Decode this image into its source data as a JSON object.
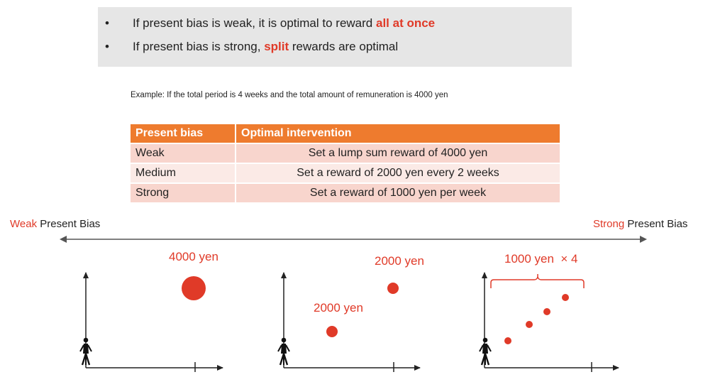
{
  "summary": {
    "bullet": "•",
    "line1": {
      "text": "If present bias is weak, it is optimal to reward ",
      "highlight": "all at once"
    },
    "line2": {
      "before": "If present bias is strong, ",
      "highlight": "split",
      "after": " rewards are optimal"
    }
  },
  "example_text": "Example: If the total period is 4 weeks and the total amount of remuneration is 4000 yen",
  "table": {
    "headers": [
      "Present bias",
      "Optimal intervention"
    ],
    "rows": [
      [
        "Weak",
        "Set a lump sum reward of 4000 yen"
      ],
      [
        "Medium",
        "Set a reward of 2000 yen every 2 weeks"
      ],
      [
        "Strong",
        "Set a reward of 1000 yen per week"
      ]
    ]
  },
  "scale": {
    "left": {
      "accent": "Weak",
      "rest": " Present Bias"
    },
    "right": {
      "accent": "Strong",
      "rest": " Present Bias"
    }
  },
  "charts": {
    "weak": {
      "label": "4000 yen"
    },
    "medium": {
      "label_high": "2000 yen",
      "label_low": "2000 yen"
    },
    "strong": {
      "label": "1000 yen  × 4"
    }
  },
  "colors": {
    "accent": "#e03a28",
    "header": "#ee7b2e",
    "row_dark": "#f8d5cd",
    "row_light": "#fbeae6",
    "summary_bg": "#e6e6e6"
  }
}
